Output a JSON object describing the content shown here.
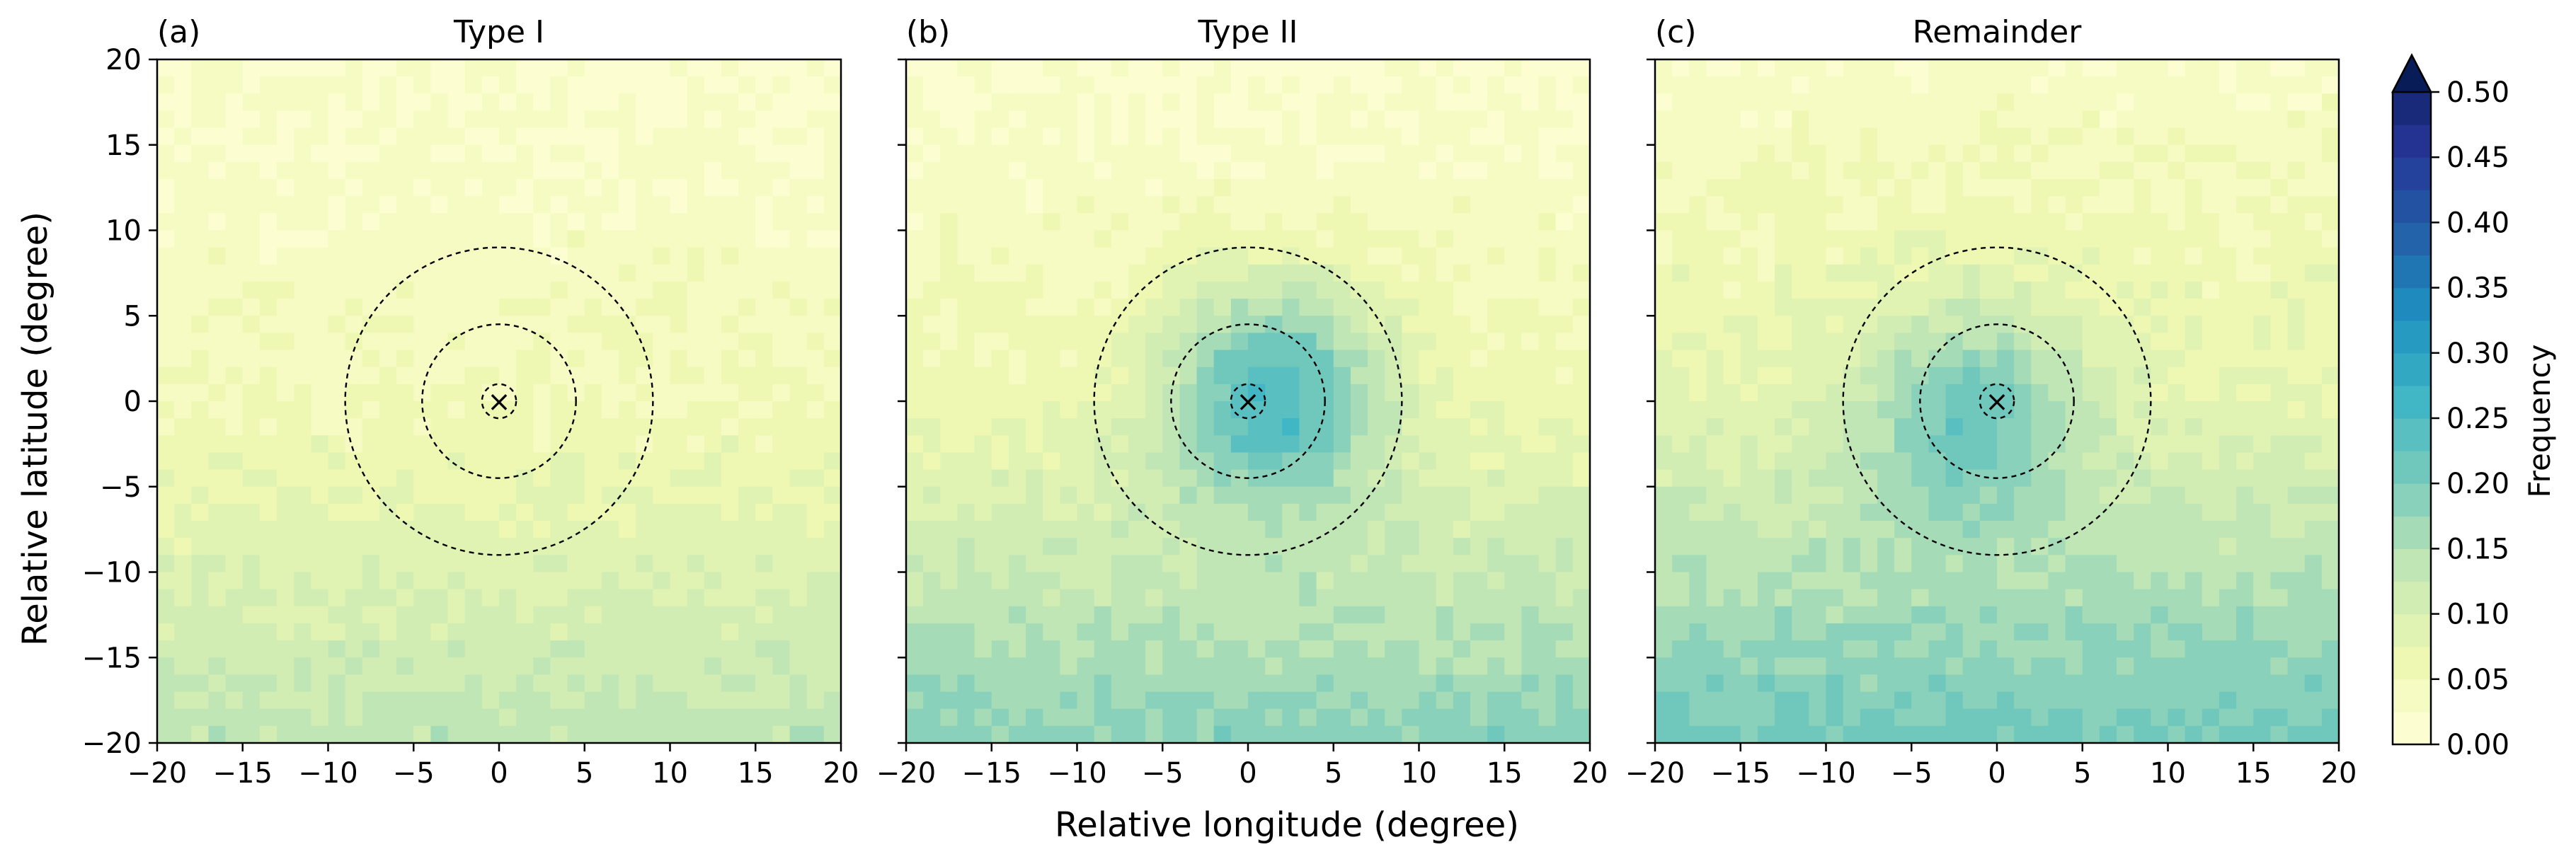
{
  "figure": {
    "xlabel": "Relative longitude (degree)",
    "ylabel": "Relative latitude (degree)"
  },
  "colors": {
    "colormap": "YlGnBu",
    "stops": [
      "#ffffd9",
      "#edf8b1",
      "#c7e9b4",
      "#7fcdbb",
      "#41b6c4",
      "#1d91c0",
      "#225ea8",
      "#253494",
      "#081d58"
    ],
    "frame": "#000000",
    "rings": "#000000"
  },
  "chart_data": [
    {
      "type": "heatmap",
      "panel_label": "(a)",
      "title": "Type I",
      "xlim": [
        -20,
        20
      ],
      "ylim": [
        -20,
        20
      ],
      "x_ticks": [
        -20,
        -15,
        -10,
        -5,
        0,
        5,
        10,
        15,
        20
      ],
      "y_ticks": [
        -20,
        -15,
        -10,
        -5,
        0,
        5,
        10,
        15,
        20
      ],
      "x_ticklabels": [
        "−20",
        "−15",
        "−10",
        "−5",
        "0",
        "5",
        "10",
        "15",
        "20"
      ],
      "y_ticklabels": [
        "−20",
        "−15",
        "−10",
        "−5",
        "0",
        "5",
        "10",
        "15",
        "20"
      ],
      "center_marker": {
        "x": 0,
        "y": 0,
        "symbol": "×"
      },
      "rings_radius_deg": [
        1,
        4.5,
        9
      ],
      "field": {
        "base": 0.05,
        "south_gradient": 0.09,
        "north_gradient": -0.03,
        "blob": {
          "x": 0,
          "y": 0,
          "amp": 0.0,
          "sigma": 5
        }
      },
      "colorbar_label": "Frequency"
    },
    {
      "type": "heatmap",
      "panel_label": "(b)",
      "title": "Type II",
      "xlim": [
        -20,
        20
      ],
      "ylim": [
        -20,
        20
      ],
      "x_ticks": [
        -20,
        -15,
        -10,
        -5,
        0,
        5,
        10,
        15,
        20
      ],
      "y_ticks": [
        -20,
        -15,
        -10,
        -5,
        0,
        5,
        10,
        15,
        20
      ],
      "x_ticklabels": [
        "−20",
        "−15",
        "−10",
        "−5",
        "0",
        "5",
        "10",
        "15",
        "20"
      ],
      "y_ticklabels": [],
      "center_marker": {
        "x": 0,
        "y": 0,
        "symbol": "×"
      },
      "rings_radius_deg": [
        1,
        4.5,
        9
      ],
      "field": {
        "base": 0.06,
        "south_gradient": 0.13,
        "north_gradient": -0.04,
        "blob": {
          "x": 1.5,
          "y": 0.5,
          "amp": 0.19,
          "sigma": 4.5
        }
      },
      "colorbar_label": "Frequency"
    },
    {
      "type": "heatmap",
      "panel_label": "(c)",
      "title": "Remainder",
      "xlim": [
        -20,
        20
      ],
      "ylim": [
        -20,
        20
      ],
      "x_ticks": [
        -20,
        -15,
        -10,
        -5,
        0,
        5,
        10,
        15,
        20
      ],
      "y_ticks": [
        -20,
        -15,
        -10,
        -5,
        0,
        5,
        10,
        15,
        20
      ],
      "x_ticklabels": [
        "−20",
        "−15",
        "−10",
        "−5",
        "0",
        "5",
        "10",
        "15",
        "20"
      ],
      "y_ticklabels": [],
      "center_marker": {
        "x": 0,
        "y": 0,
        "symbol": "×"
      },
      "rings_radius_deg": [
        1,
        4.5,
        9
      ],
      "field": {
        "base": 0.08,
        "south_gradient": 0.13,
        "north_gradient": -0.05,
        "blob": {
          "x": -1.5,
          "y": -0.5,
          "amp": 0.13,
          "sigma": 4.5
        }
      },
      "colorbar_label": "Frequency"
    }
  ],
  "colorbar": {
    "label": "Frequency",
    "min": 0.0,
    "max": 0.5,
    "levels": 20,
    "extend": "max",
    "ticks": [
      0.0,
      0.05,
      0.1,
      0.15,
      0.2,
      0.25,
      0.3,
      0.35,
      0.4,
      0.45,
      0.5
    ],
    "ticklabels": [
      "0.00",
      "0.05",
      "0.10",
      "0.15",
      "0.20",
      "0.25",
      "0.30",
      "0.35",
      "0.40",
      "0.45",
      "0.50"
    ]
  }
}
